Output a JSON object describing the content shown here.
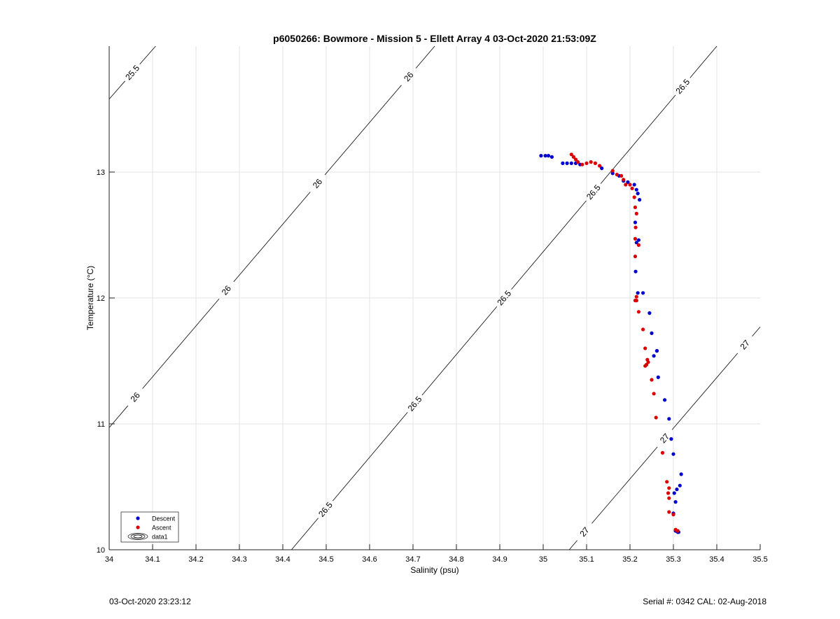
{
  "chart_data": {
    "type": "scatter",
    "title": "p6050266: Bowmore - Mission 5 - Ellett Array 4 03-Oct-2020 21:53:09Z",
    "xlabel": "Salinity (psu)",
    "ylabel": "Temperature (°C)",
    "xlim": [
      34,
      35.5
    ],
    "ylim": [
      10,
      14
    ],
    "xticks": [
      "34",
      "34.1",
      "34.2",
      "34.3",
      "34.4",
      "34.5",
      "34.6",
      "34.7",
      "34.8",
      "34.9",
      "35",
      "35.1",
      "35.2",
      "35.3",
      "35.4",
      "35.5"
    ],
    "yticks": [
      "10",
      "11",
      "12",
      "13"
    ],
    "grid": true,
    "legend_position": "bottom-left",
    "legend": [
      {
        "label": "Descent",
        "color": "#0000cc"
      },
      {
        "label": "Ascent",
        "color": "#dd0000"
      },
      {
        "label": "data1",
        "color": "#000000"
      }
    ],
    "contours": [
      {
        "level": 25.5,
        "points": [
          [
            34.0,
            13.58
          ],
          [
            34.107,
            14.0
          ]
        ],
        "labels": [
          "25.5"
        ]
      },
      {
        "level": 26.0,
        "points": [
          [
            34.0,
            10.97
          ],
          [
            34.75,
            14.0
          ]
        ],
        "labels": [
          "26",
          "26",
          "26",
          "26"
        ]
      },
      {
        "level": 26.5,
        "points": [
          [
            34.42,
            10.0
          ],
          [
            35.4,
            14.0
          ]
        ],
        "labels": [
          "26.5",
          "26.5",
          "26.5",
          "26.5",
          "26.5"
        ]
      },
      {
        "level": 27.0,
        "points": [
          [
            35.06,
            10.0
          ],
          [
            35.5,
            11.77
          ]
        ],
        "labels": [
          "27",
          "27",
          "27"
        ]
      }
    ],
    "series": [
      {
        "name": "Descent",
        "color": "#0000cc",
        "x": [
          34.995,
          35.005,
          35.012,
          35.02,
          35.045,
          35.055,
          35.065,
          35.075,
          35.085,
          35.135,
          35.16,
          35.175,
          35.185,
          35.195,
          35.21,
          35.215,
          35.218,
          35.222,
          35.212,
          35.22,
          35.215,
          35.213,
          35.218,
          35.23,
          35.245,
          35.25,
          35.262,
          35.262,
          35.255,
          35.265,
          35.28,
          35.29,
          35.295,
          35.3,
          35.318,
          35.315,
          35.308,
          35.302,
          35.305,
          35.3,
          35.305,
          35.31,
          35.312
        ],
        "y": [
          13.13,
          13.13,
          13.13,
          13.12,
          13.07,
          13.07,
          13.07,
          13.07,
          13.06,
          13.03,
          12.99,
          12.97,
          12.93,
          12.92,
          12.9,
          12.86,
          12.83,
          12.78,
          12.6,
          12.46,
          12.44,
          12.21,
          12.04,
          12.04,
          11.88,
          11.72,
          11.58,
          11.58,
          11.54,
          11.37,
          11.19,
          11.04,
          10.88,
          10.76,
          10.6,
          10.51,
          10.48,
          10.45,
          10.38,
          10.29,
          10.15,
          10.14,
          10.14
        ]
      },
      {
        "name": "Ascent",
        "color": "#dd0000",
        "x": [
          35.065,
          35.07,
          35.075,
          35.08,
          35.09,
          35.1,
          35.11,
          35.12,
          35.13,
          35.16,
          35.17,
          35.18,
          35.185,
          35.19,
          35.2,
          35.205,
          35.21,
          35.212,
          35.215,
          35.213,
          35.212,
          35.22,
          35.212,
          35.215,
          35.215,
          35.212,
          35.22,
          35.23,
          35.235,
          35.24,
          35.242,
          35.238,
          35.235,
          35.25,
          35.255,
          35.26,
          35.275,
          35.285,
          35.29,
          35.288,
          35.29,
          35.29,
          35.3,
          35.305,
          35.31
        ],
        "y": [
          13.14,
          13.12,
          13.1,
          13.08,
          13.06,
          13.07,
          13.08,
          13.07,
          13.05,
          13.01,
          12.98,
          12.97,
          12.94,
          12.9,
          12.9,
          12.87,
          12.8,
          12.72,
          12.67,
          12.56,
          12.47,
          12.42,
          12.33,
          12.01,
          11.98,
          11.98,
          11.89,
          11.75,
          11.6,
          11.51,
          11.49,
          11.47,
          11.46,
          11.35,
          11.24,
          11.05,
          10.77,
          10.54,
          10.49,
          10.45,
          10.41,
          10.3,
          10.28,
          10.16,
          10.15
        ]
      }
    ]
  },
  "footer": {
    "timestamp": "03-Oct-2020 23:23:12",
    "serial_cal": "Serial #: 0342  CAL: 02-Aug-2018"
  }
}
